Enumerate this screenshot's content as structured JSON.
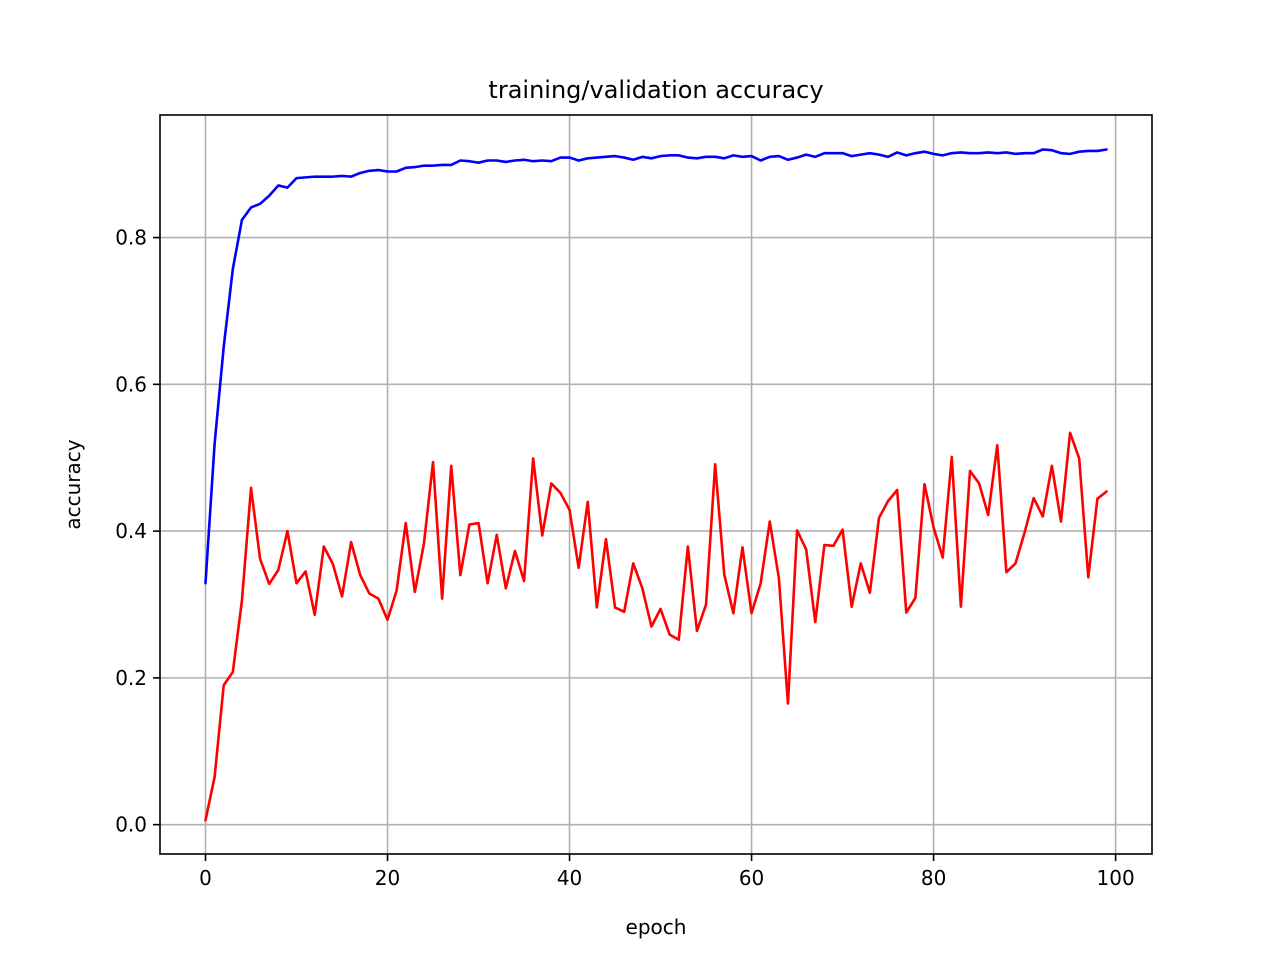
{
  "chart_data": {
    "type": "line",
    "title": "training/validation accuracy",
    "xlabel": "epoch",
    "ylabel": "accuracy",
    "xlim": [
      -5,
      104
    ],
    "ylim": [
      -0.04,
      0.967
    ],
    "xticks": [
      0,
      20,
      40,
      60,
      80,
      100
    ],
    "xtick_labels": [
      "0",
      "20",
      "40",
      "60",
      "80",
      "100"
    ],
    "yticks": [
      0.0,
      0.2,
      0.4,
      0.6,
      0.8
    ],
    "ytick_labels": [
      "0.0",
      "0.2",
      "0.4",
      "0.6",
      "0.8"
    ],
    "grid": true,
    "legend": "none",
    "series": [
      {
        "color": "#0000ff",
        "x": [
          0,
          1,
          2,
          3,
          4,
          5,
          6,
          7,
          8,
          9,
          10,
          11,
          12,
          13,
          14,
          15,
          16,
          17,
          18,
          19,
          20,
          21,
          22,
          23,
          24,
          25,
          26,
          27,
          28,
          29,
          30,
          31,
          32,
          33,
          34,
          35,
          36,
          37,
          38,
          39,
          40,
          41,
          42,
          43,
          44,
          45,
          46,
          47,
          48,
          49,
          50,
          51,
          52,
          53,
          54,
          55,
          56,
          57,
          58,
          59,
          60,
          61,
          62,
          63,
          64,
          65,
          66,
          67,
          68,
          69,
          70,
          71,
          72,
          73,
          74,
          75,
          76,
          77,
          78,
          79,
          80,
          81,
          82,
          83,
          84,
          85,
          86,
          87,
          88,
          89,
          90,
          91,
          92,
          93,
          94,
          95,
          96,
          97,
          98,
          99
        ],
        "values": [
          0.329,
          0.519,
          0.651,
          0.757,
          0.824,
          0.841,
          0.846,
          0.857,
          0.871,
          0.868,
          0.881,
          0.882,
          0.883,
          0.883,
          0.883,
          0.884,
          0.883,
          0.888,
          0.891,
          0.892,
          0.89,
          0.89,
          0.895,
          0.896,
          0.898,
          0.898,
          0.899,
          0.899,
          0.905,
          0.904,
          0.902,
          0.905,
          0.905,
          0.903,
          0.905,
          0.906,
          0.904,
          0.905,
          0.904,
          0.909,
          0.909,
          0.905,
          0.908,
          0.909,
          0.91,
          0.911,
          0.909,
          0.906,
          0.91,
          0.908,
          0.911,
          0.912,
          0.912,
          0.909,
          0.908,
          0.91,
          0.91,
          0.908,
          0.912,
          0.91,
          0.911,
          0.905,
          0.91,
          0.911,
          0.906,
          0.909,
          0.913,
          0.91,
          0.915,
          0.915,
          0.915,
          0.911,
          0.913,
          0.915,
          0.913,
          0.91,
          0.916,
          0.912,
          0.915,
          0.917,
          0.914,
          0.912,
          0.915,
          0.916,
          0.915,
          0.915,
          0.916,
          0.915,
          0.916,
          0.914,
          0.915,
          0.915,
          0.92,
          0.919,
          0.915,
          0.914,
          0.917,
          0.918,
          0.918,
          0.92
        ]
      },
      {
        "color": "#ff0000",
        "x": [
          0,
          1,
          2,
          3,
          4,
          5,
          6,
          7,
          8,
          9,
          10,
          11,
          12,
          13,
          14,
          15,
          16,
          17,
          18,
          19,
          20,
          21,
          22,
          23,
          24,
          25,
          26,
          27,
          28,
          29,
          30,
          31,
          32,
          33,
          34,
          35,
          36,
          37,
          38,
          39,
          40,
          41,
          42,
          43,
          44,
          45,
          46,
          47,
          48,
          49,
          50,
          51,
          52,
          53,
          54,
          55,
          56,
          57,
          58,
          59,
          60,
          61,
          62,
          63,
          64,
          65,
          66,
          67,
          68,
          69,
          70,
          71,
          72,
          73,
          74,
          75,
          76,
          77,
          78,
          79,
          80,
          81,
          82,
          83,
          84,
          85,
          86,
          87,
          88,
          89,
          90,
          91,
          92,
          93,
          94,
          95,
          96,
          97,
          98,
          99
        ],
        "values": [
          0.006,
          0.065,
          0.19,
          0.208,
          0.305,
          0.459,
          0.362,
          0.328,
          0.347,
          0.4,
          0.329,
          0.345,
          0.286,
          0.379,
          0.355,
          0.311,
          0.385,
          0.34,
          0.315,
          0.308,
          0.279,
          0.319,
          0.411,
          0.317,
          0.383,
          0.494,
          0.308,
          0.489,
          0.34,
          0.409,
          0.411,
          0.329,
          0.395,
          0.322,
          0.373,
          0.332,
          0.499,
          0.394,
          0.465,
          0.452,
          0.429,
          0.35,
          0.44,
          0.296,
          0.389,
          0.296,
          0.29,
          0.356,
          0.322,
          0.27,
          0.294,
          0.259,
          0.252,
          0.379,
          0.264,
          0.3,
          0.491,
          0.341,
          0.288,
          0.378,
          0.288,
          0.329,
          0.413,
          0.336,
          0.165,
          0.401,
          0.375,
          0.276,
          0.381,
          0.38,
          0.402,
          0.297,
          0.356,
          0.316,
          0.418,
          0.441,
          0.456,
          0.289,
          0.309,
          0.464,
          0.405,
          0.364,
          0.501,
          0.297,
          0.482,
          0.465,
          0.422,
          0.517,
          0.344,
          0.356,
          0.398,
          0.445,
          0.42,
          0.489,
          0.413,
          0.534,
          0.499,
          0.337,
          0.444,
          0.454
        ]
      }
    ]
  }
}
